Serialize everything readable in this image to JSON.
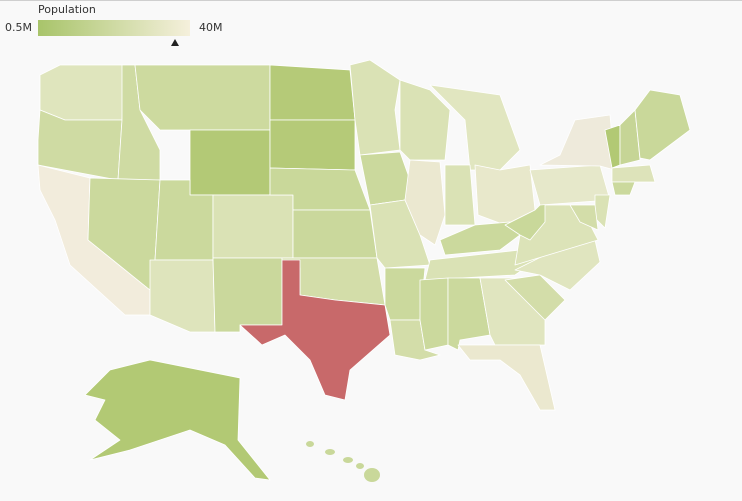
{
  "legend": {
    "title": "Population",
    "min_label": "0.5M",
    "max_label": "40M"
  }
}
